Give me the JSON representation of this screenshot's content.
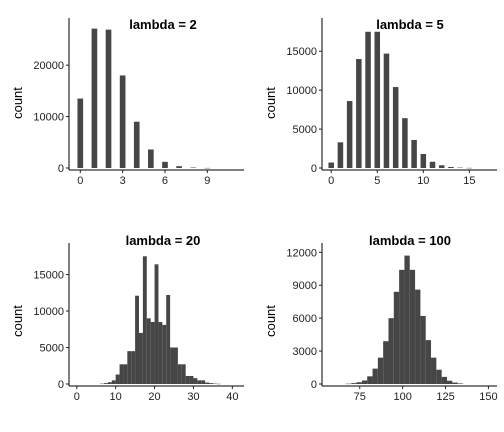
{
  "chart_data": [
    {
      "type": "bar",
      "title": "lambda = 2",
      "xlabel": "",
      "ylabel": "count",
      "xlim": [
        -0.8,
        11.6
      ],
      "ylim": [
        0,
        28000
      ],
      "xticks": [
        0,
        3,
        6,
        9
      ],
      "yticks": [
        0,
        10000,
        20000
      ],
      "ytick_labels": [
        "0",
        "10000",
        "20000"
      ],
      "bar_width": 0.4,
      "bars": [
        {
          "x": 0,
          "y": 13500
        },
        {
          "x": 1,
          "y": 27100
        },
        {
          "x": 2,
          "y": 26900
        },
        {
          "x": 3,
          "y": 18000
        },
        {
          "x": 4,
          "y": 9000
        },
        {
          "x": 5,
          "y": 3600
        },
        {
          "x": 6,
          "y": 1200
        },
        {
          "x": 7,
          "y": 350
        },
        {
          "x": 8,
          "y": 90
        },
        {
          "x": 9,
          "y": 20
        }
      ]
    },
    {
      "type": "bar",
      "title": "lambda = 5",
      "xlabel": "",
      "ylabel": "count",
      "xlim": [
        -1,
        18
      ],
      "ylim": [
        0,
        18500
      ],
      "xticks": [
        0,
        5,
        10,
        15
      ],
      "yticks": [
        0,
        5000,
        10000,
        15000
      ],
      "ytick_labels": [
        "0",
        "5000",
        "10000",
        "15000"
      ],
      "bar_width": 0.6,
      "bars": [
        {
          "x": 0,
          "y": 700
        },
        {
          "x": 1,
          "y": 3300
        },
        {
          "x": 2,
          "y": 8600
        },
        {
          "x": 3,
          "y": 14000
        },
        {
          "x": 4,
          "y": 17500
        },
        {
          "x": 5,
          "y": 17500
        },
        {
          "x": 6,
          "y": 14700
        },
        {
          "x": 7,
          "y": 10400
        },
        {
          "x": 8,
          "y": 6400
        },
        {
          "x": 9,
          "y": 3600
        },
        {
          "x": 10,
          "y": 1800
        },
        {
          "x": 11,
          "y": 800
        },
        {
          "x": 12,
          "y": 350
        },
        {
          "x": 13,
          "y": 130
        },
        {
          "x": 14,
          "y": 50
        },
        {
          "x": 15,
          "y": 15
        }
      ]
    },
    {
      "type": "bar",
      "title": "lambda = 20",
      "xlabel": "",
      "ylabel": "count",
      "xlim": [
        -2,
        43
      ],
      "ylim": [
        0,
        18500
      ],
      "xticks": [
        0,
        10,
        20,
        30,
        40
      ],
      "yticks": [
        0,
        5000,
        10000,
        15000
      ],
      "ytick_labels": [
        "0",
        "5000",
        "10000",
        "15000"
      ],
      "bar_width": 1.0,
      "bars": [
        {
          "x": 6.5,
          "y": 50
        },
        {
          "x": 7.5,
          "y": 120
        },
        {
          "x": 8.5,
          "y": 250
        },
        {
          "x": 9.5,
          "y": 500
        },
        {
          "x": 10.5,
          "y": 1300
        },
        {
          "x": 11.5,
          "y": 2700
        },
        {
          "x": 12.5,
          "y": 2700
        },
        {
          "x": 13.5,
          "y": 4500
        },
        {
          "x": 14.5,
          "y": 4500
        },
        {
          "x": 15.5,
          "y": 12100
        },
        {
          "x": 16.5,
          "y": 7000
        },
        {
          "x": 17.5,
          "y": 17500
        },
        {
          "x": 18.5,
          "y": 9000
        },
        {
          "x": 19.5,
          "y": 8500
        },
        {
          "x": 20.5,
          "y": 16400
        },
        {
          "x": 21.5,
          "y": 8500
        },
        {
          "x": 22.5,
          "y": 8100
        },
        {
          "x": 23.5,
          "y": 12200
        },
        {
          "x": 24.5,
          "y": 5000
        },
        {
          "x": 25.5,
          "y": 5000
        },
        {
          "x": 26.5,
          "y": 2700
        },
        {
          "x": 27.5,
          "y": 2700
        },
        {
          "x": 28.5,
          "y": 1100
        },
        {
          "x": 29.5,
          "y": 1100
        },
        {
          "x": 30.5,
          "y": 800
        },
        {
          "x": 31.5,
          "y": 500
        },
        {
          "x": 32.5,
          "y": 500
        },
        {
          "x": 33.5,
          "y": 200
        },
        {
          "x": 34.5,
          "y": 120
        },
        {
          "x": 35.5,
          "y": 60
        },
        {
          "x": 36.5,
          "y": 30
        }
      ]
    },
    {
      "type": "bar",
      "title": "lambda = 100",
      "xlabel": "",
      "ylabel": "count",
      "xlim": [
        53,
        155
      ],
      "ylim": [
        0,
        12300
      ],
      "xticks": [
        75,
        100,
        125,
        150
      ],
      "yticks": [
        0,
        3000,
        6000,
        9000,
        12000
      ],
      "ytick_labels": [
        "0",
        "3000",
        "6000",
        "9000",
        "12000"
      ],
      "bar_width": 3.1,
      "bars": [
        {
          "x": 68.5,
          "y": 30
        },
        {
          "x": 71.6,
          "y": 80
        },
        {
          "x": 74.7,
          "y": 160
        },
        {
          "x": 77.8,
          "y": 320
        },
        {
          "x": 80.9,
          "y": 700
        },
        {
          "x": 84.0,
          "y": 1400
        },
        {
          "x": 87.1,
          "y": 2400
        },
        {
          "x": 90.2,
          "y": 3900
        },
        {
          "x": 93.3,
          "y": 6000
        },
        {
          "x": 96.4,
          "y": 8400
        },
        {
          "x": 99.5,
          "y": 10400
        },
        {
          "x": 102.6,
          "y": 11700
        },
        {
          "x": 105.7,
          "y": 10400
        },
        {
          "x": 108.8,
          "y": 8600
        },
        {
          "x": 111.9,
          "y": 6200
        },
        {
          "x": 115.0,
          "y": 4000
        },
        {
          "x": 118.1,
          "y": 2400
        },
        {
          "x": 121.2,
          "y": 1300
        },
        {
          "x": 124.3,
          "y": 650
        },
        {
          "x": 127.4,
          "y": 300
        },
        {
          "x": 130.5,
          "y": 130
        },
        {
          "x": 133.6,
          "y": 50
        }
      ]
    }
  ]
}
